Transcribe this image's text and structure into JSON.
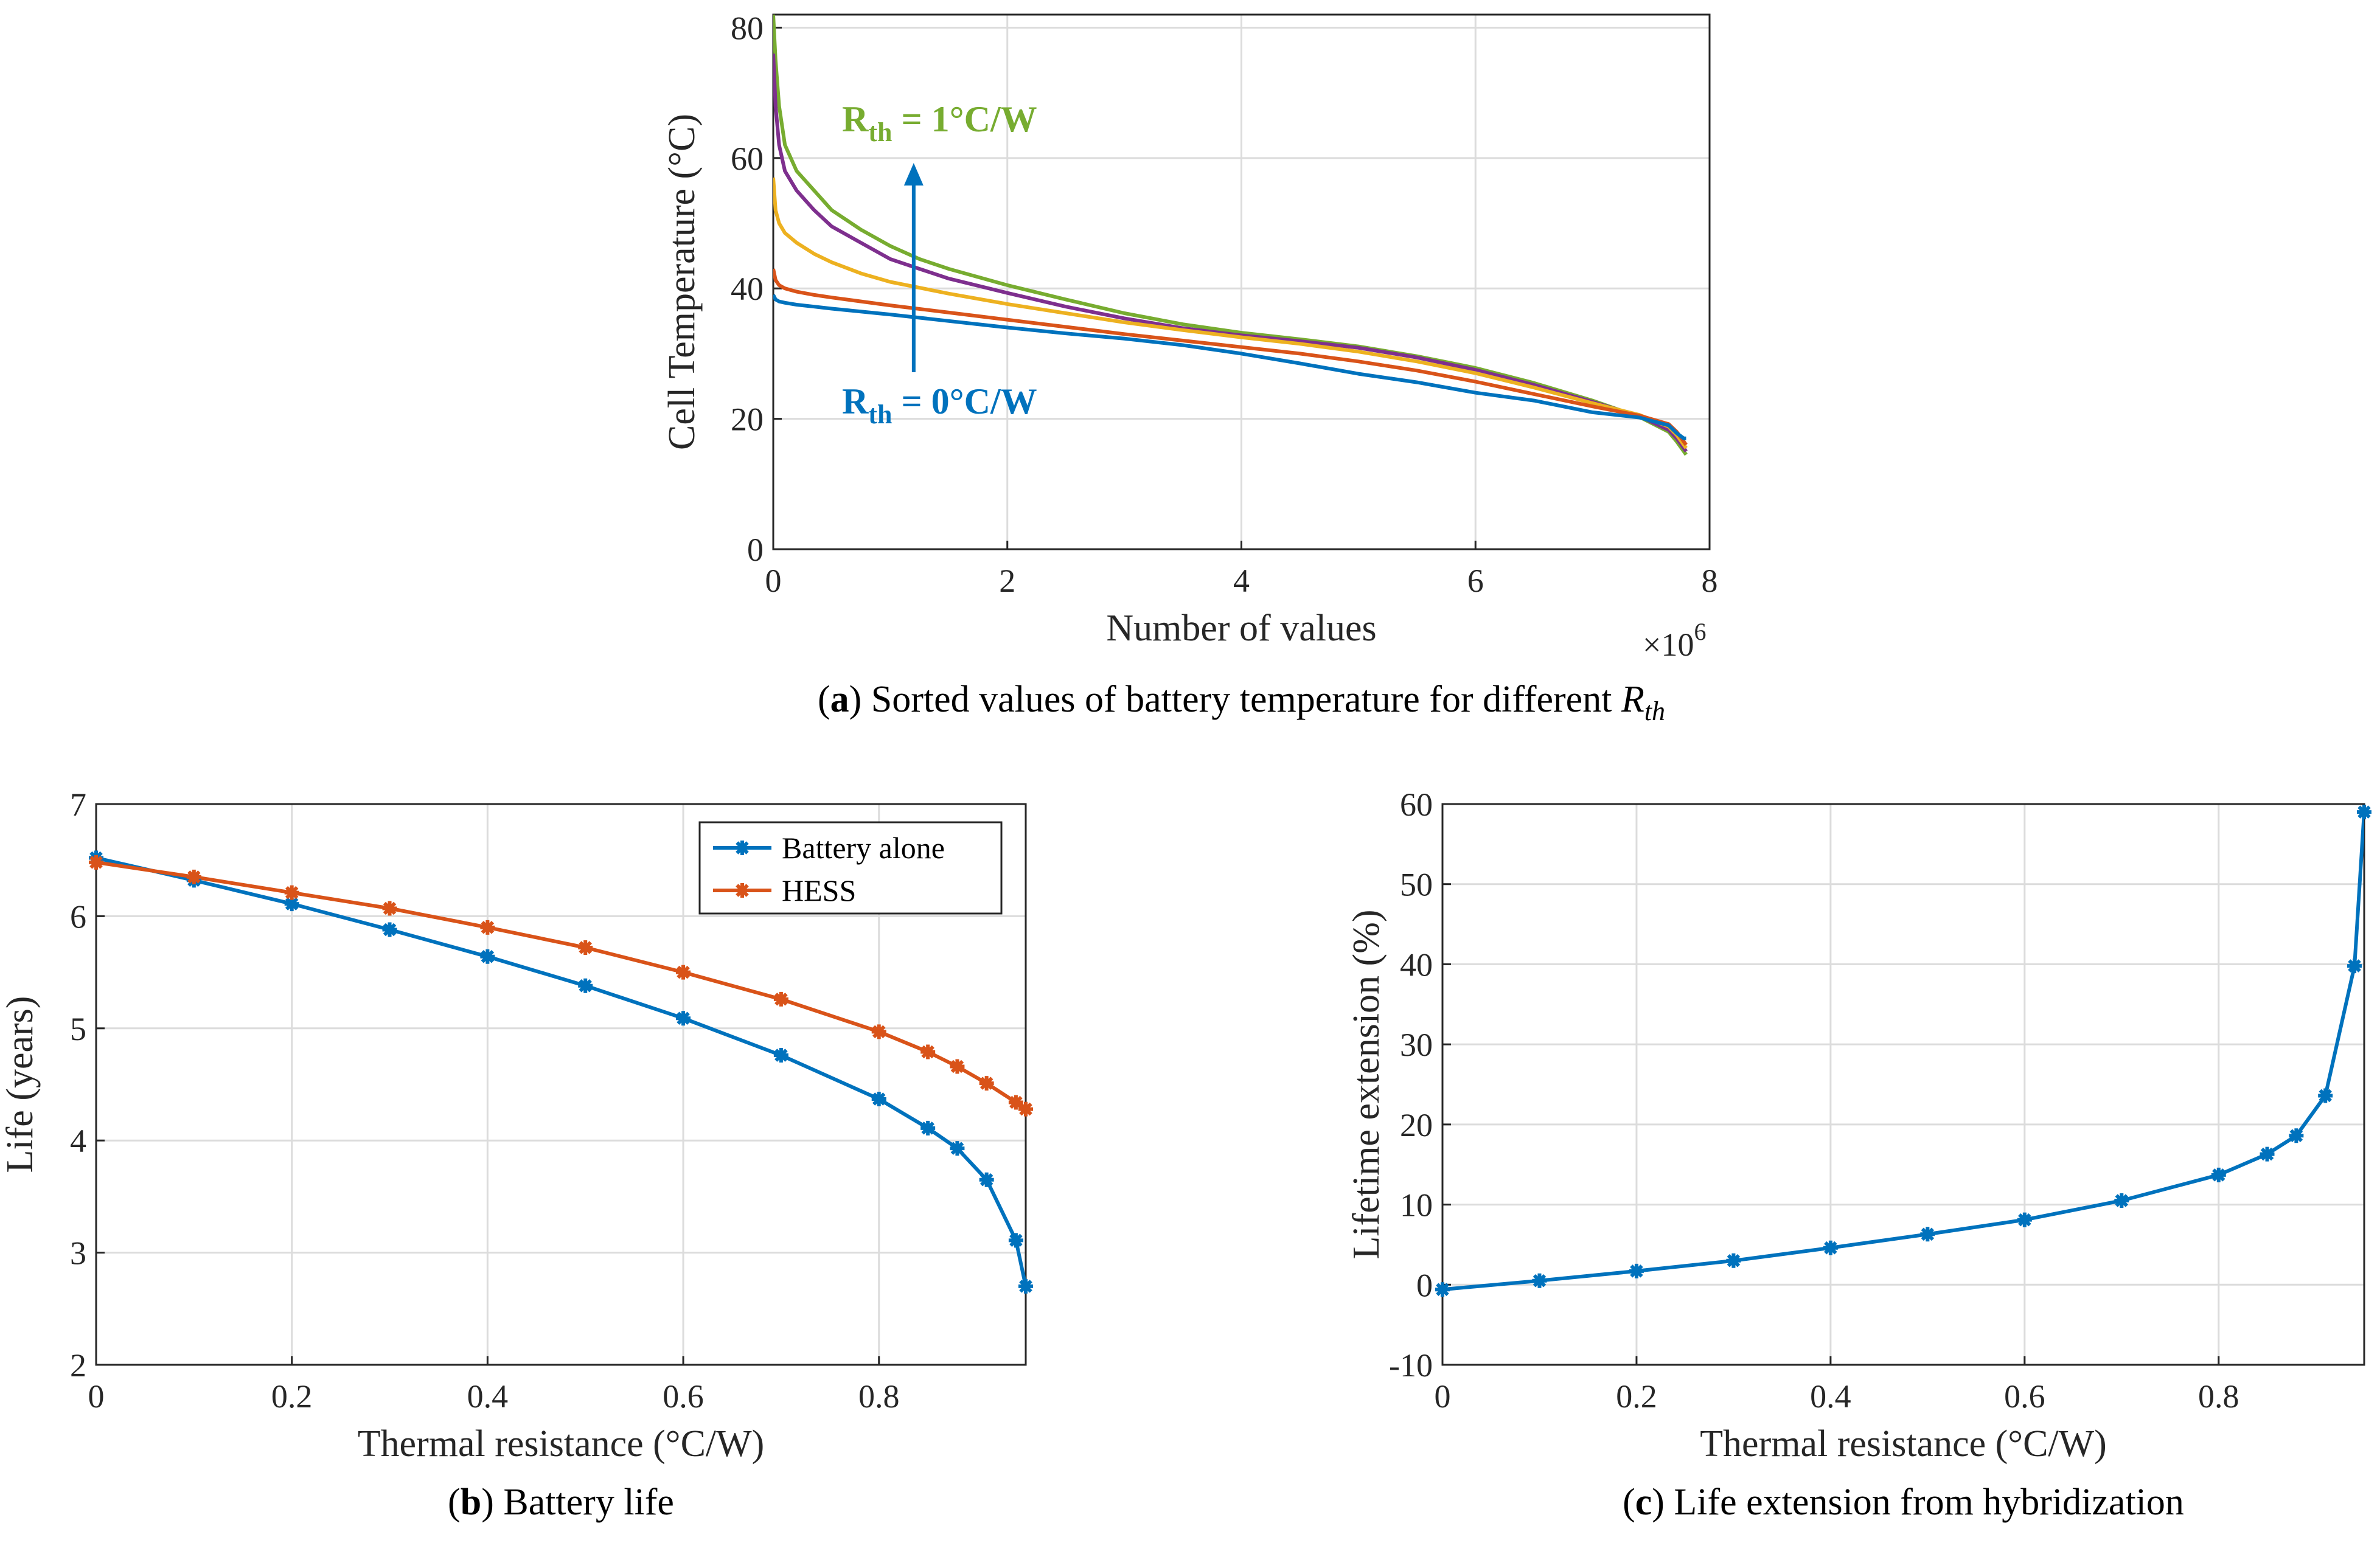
{
  "chart_data": [
    {
      "id": "a",
      "type": "line",
      "caption_label": "a",
      "caption_text": "Sorted values of battery temperature for different ",
      "caption_symbol": "R",
      "caption_symbol_sub": "th",
      "xlabel": "Number of values",
      "ylabel": "Cell Temperature (°C)",
      "x_multiplier": "×10",
      "x_multiplier_exp": "6",
      "xlim": [
        0,
        8
      ],
      "ylim": [
        0,
        82
      ],
      "xticks": [
        "0",
        "2",
        "4",
        "6",
        "8"
      ],
      "yticks": [
        "0",
        "20",
        "40",
        "60",
        "80"
      ],
      "grid": true,
      "annotations": {
        "top": {
          "main": "R",
          "sub": "th",
          "rest": " = 1°C/W",
          "color": "#77AC30"
        },
        "bottom": {
          "main": "R",
          "sub": "th",
          "rest": " = 0°C/W",
          "color": "#0072BD"
        }
      },
      "series": [
        {
          "color": "#77AC30",
          "x": [
            0,
            0.02,
            0.05,
            0.1,
            0.2,
            0.35,
            0.5,
            0.75,
            1.0,
            1.25,
            1.5,
            2.0,
            2.5,
            3.0,
            3.5,
            4.0,
            4.5,
            5.0,
            5.5,
            6.0,
            6.5,
            7.0,
            7.4,
            7.65,
            7.72,
            7.78,
            7.8
          ],
          "y": [
            82,
            75,
            68,
            62,
            58,
            55,
            52,
            49,
            46.5,
            44.5,
            43,
            40.5,
            38.3,
            36.2,
            34.5,
            33.2,
            32.2,
            31.1,
            29.6,
            27.8,
            25.5,
            22.8,
            20.3,
            18.0,
            16.5,
            15.0,
            14.5
          ]
        },
        {
          "color": "#7E2F8E",
          "x": [
            0,
            0.02,
            0.05,
            0.1,
            0.2,
            0.35,
            0.5,
            0.75,
            1.0,
            1.25,
            1.5,
            2.0,
            2.5,
            3.0,
            3.5,
            4.0,
            4.5,
            5.0,
            5.5,
            6.0,
            6.5,
            7.0,
            7.4,
            7.65,
            7.72,
            7.78,
            7.8
          ],
          "y": [
            76,
            68,
            62,
            58,
            55,
            52,
            49.5,
            47,
            44.5,
            43,
            41.5,
            39.3,
            37.2,
            35.4,
            33.9,
            32.8,
            31.9,
            30.9,
            29.4,
            27.5,
            25.2,
            22.6,
            20.4,
            18.3,
            17.0,
            15.5,
            15.0
          ]
        },
        {
          "color": "#EDB120",
          "x": [
            0,
            0.02,
            0.05,
            0.1,
            0.2,
            0.35,
            0.5,
            0.75,
            1.0,
            1.5,
            2.0,
            2.5,
            3.0,
            3.5,
            4.0,
            4.5,
            5.0,
            5.5,
            6.0,
            6.5,
            7.0,
            7.4,
            7.65,
            7.72,
            7.78,
            7.8
          ],
          "y": [
            57,
            52,
            50,
            48.5,
            47,
            45.3,
            44,
            42.3,
            41,
            39.2,
            37.6,
            36.2,
            34.8,
            33.6,
            32.5,
            31.5,
            30.3,
            28.8,
            27.0,
            24.8,
            22.4,
            20.6,
            18.8,
            17.5,
            16.0,
            15.5
          ]
        },
        {
          "color": "#D95319",
          "x": [
            0,
            0.02,
            0.05,
            0.1,
            0.2,
            0.35,
            0.5,
            1.0,
            1.5,
            2.0,
            2.5,
            3.0,
            3.5,
            4.0,
            4.5,
            5.0,
            5.5,
            6.0,
            6.5,
            7.0,
            7.4,
            7.65,
            7.72,
            7.78,
            7.8
          ],
          "y": [
            43,
            41.3,
            40.5,
            40,
            39.5,
            39.0,
            38.6,
            37.4,
            36.3,
            35.2,
            34.1,
            33.0,
            32.0,
            31.0,
            30.0,
            28.8,
            27.4,
            25.7,
            23.8,
            21.9,
            20.5,
            19.2,
            18.0,
            16.5,
            16.0
          ]
        },
        {
          "color": "#0072BD",
          "x": [
            0,
            0.02,
            0.05,
            0.1,
            0.2,
            0.35,
            0.5,
            1.0,
            1.5,
            2.0,
            2.5,
            3.0,
            3.5,
            4.0,
            4.5,
            5.0,
            5.5,
            6.0,
            6.5,
            7.0,
            7.4,
            7.65,
            7.72,
            7.78,
            7.8
          ],
          "y": [
            39,
            38.3,
            38,
            37.8,
            37.5,
            37.2,
            36.9,
            36.0,
            35.0,
            34.0,
            33.1,
            32.3,
            31.3,
            30.0,
            28.5,
            26.9,
            25.6,
            24.0,
            22.8,
            21.0,
            20.2,
            19.0,
            17.8,
            17.0,
            17.0
          ]
        }
      ]
    },
    {
      "id": "b",
      "type": "line",
      "caption_label": "b",
      "caption_text": "Battery life",
      "xlabel": "Thermal resistance (°C/W)",
      "ylabel": "Life (years)",
      "xlim": [
        0,
        0.95
      ],
      "ylim": [
        2,
        7
      ],
      "xticks": [
        "0",
        "0.2",
        "0.4",
        "0.6",
        "0.8"
      ],
      "yticks": [
        "2",
        "3",
        "4",
        "5",
        "6",
        "7"
      ],
      "grid": true,
      "legend_position": "top-right",
      "x": [
        0,
        0.1,
        0.2,
        0.3,
        0.4,
        0.5,
        0.6,
        0.7,
        0.8,
        0.85,
        0.88,
        0.91,
        0.94,
        0.95
      ],
      "series": [
        {
          "name": "Battery alone",
          "color": "#0072BD",
          "values": [
            6.52,
            6.32,
            6.11,
            5.88,
            5.64,
            5.38,
            5.09,
            4.76,
            4.37,
            4.11,
            3.93,
            3.65,
            3.11,
            2.7
          ]
        },
        {
          "name": "HESS",
          "color": "#D95319",
          "values": [
            6.48,
            6.35,
            6.21,
            6.07,
            5.9,
            5.72,
            5.5,
            5.26,
            4.97,
            4.79,
            4.66,
            4.51,
            4.34,
            4.28
          ]
        }
      ]
    },
    {
      "id": "c",
      "type": "line",
      "caption_label": "c",
      "caption_text": "Life extension from hybridization",
      "xlabel": "Thermal resistance (°C/W)",
      "ylabel": "Lifetime extension (%)",
      "xlim": [
        0,
        0.95
      ],
      "ylim": [
        -10,
        60
      ],
      "xticks": [
        "0",
        "0.2",
        "0.4",
        "0.6",
        "0.8"
      ],
      "yticks": [
        "-10",
        "0",
        "10",
        "20",
        "30",
        "40",
        "50",
        "60"
      ],
      "grid": true,
      "x": [
        0,
        0.1,
        0.2,
        0.3,
        0.4,
        0.5,
        0.6,
        0.7,
        0.8,
        0.85,
        0.88,
        0.91,
        0.94,
        0.95
      ],
      "series": [
        {
          "color": "#0072BD",
          "values": [
            -0.6,
            0.5,
            1.7,
            3.0,
            4.6,
            6.3,
            8.1,
            10.5,
            13.7,
            16.3,
            18.6,
            23.6,
            39.8,
            59.0
          ]
        }
      ]
    }
  ]
}
